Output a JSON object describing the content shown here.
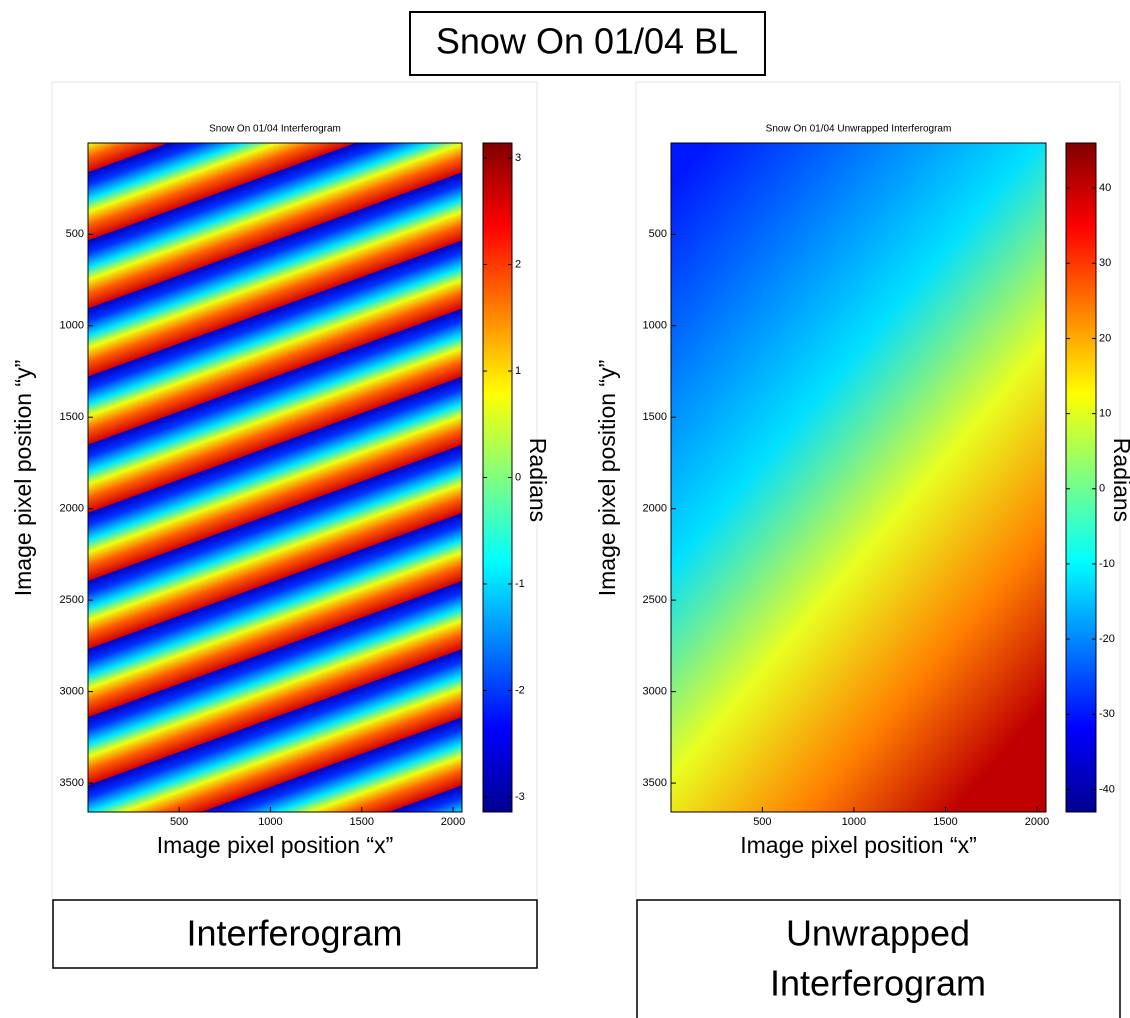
{
  "header": {
    "title": "Snow On 01/04 BL"
  },
  "captions": [
    {
      "lines": [
        "Interferogram"
      ]
    },
    {
      "lines": [
        "Unwrapped",
        "Interferogram"
      ]
    }
  ],
  "chart_data": [
    {
      "type": "heatmap",
      "title": "Snow On 01/04 Interferogram",
      "pattern": "wrapped",
      "xlabel": "Image pixel position “x”",
      "ylabel": "Image pixel position “y”",
      "colorbar_label": "Radians",
      "colormap": "jet",
      "xlim": [
        1,
        2049
      ],
      "xticks": [
        500,
        1000,
        1500,
        2000
      ],
      "ylim": [
        1,
        3658
      ],
      "yticks": [
        500,
        1000,
        1500,
        2000,
        2500,
        3000,
        3500
      ],
      "clim": [
        -3.1416,
        3.1416
      ],
      "cticks": [
        -3,
        -2,
        -1,
        0,
        1,
        2,
        3
      ]
    },
    {
      "type": "heatmap",
      "title": "Snow On 01/04 Unwrapped Interferogram",
      "pattern": "unwrapped",
      "xlabel": "Image pixel position “x”",
      "ylabel": "Image pixel position “y”",
      "colorbar_label": "Radians",
      "colormap": "jet",
      "xlim": [
        1,
        2049
      ],
      "xticks": [
        500,
        1000,
        1500,
        2000
      ],
      "ylim": [
        1,
        3658
      ],
      "yticks": [
        500,
        1000,
        1500,
        2000,
        2500,
        3000,
        3500
      ],
      "clim": [
        -43,
        46
      ],
      "cticks": [
        -40,
        -30,
        -20,
        -10,
        0,
        10,
        20,
        30,
        40
      ]
    }
  ]
}
